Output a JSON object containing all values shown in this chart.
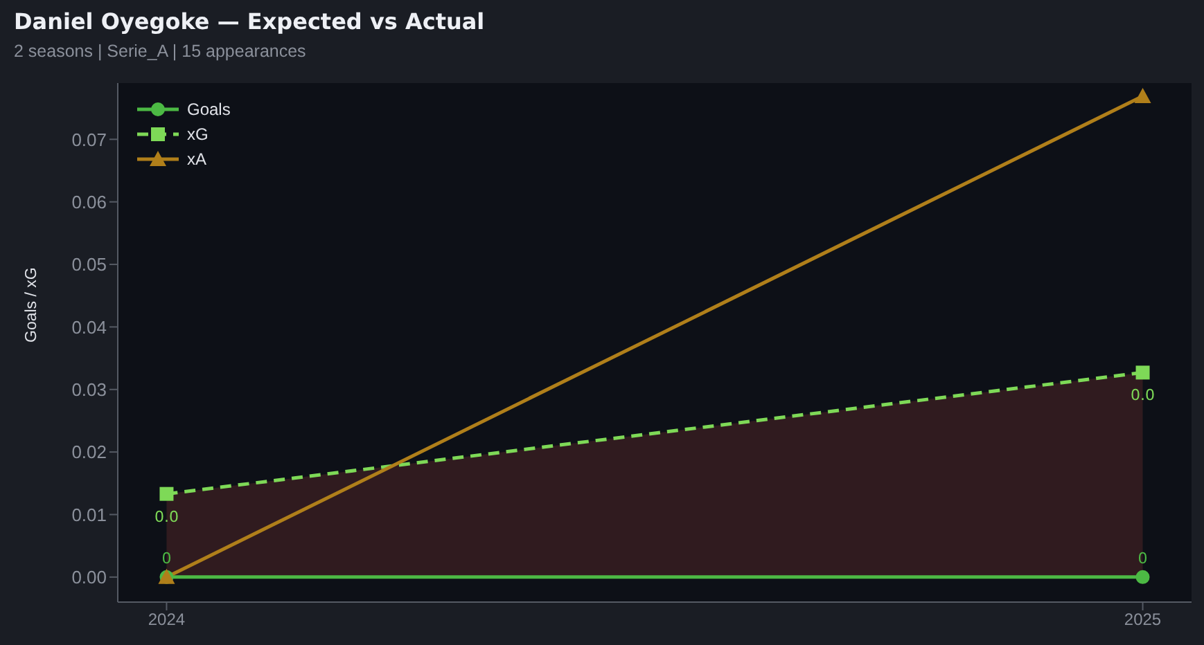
{
  "chart_data": {
    "type": "line",
    "title": "Daniel Oyegoke — Expected vs Actual",
    "subtitle": "2 seasons | Serie_A | 15 appearances",
    "ylabel": "Goals / xG",
    "categories": [
      "2024",
      "2025"
    ],
    "series": [
      {
        "name": "Goals",
        "color": "#4cb944",
        "values": [
          0,
          0
        ],
        "marker": "circle",
        "line_style": "solid",
        "value_labels": [
          "0",
          "0"
        ]
      },
      {
        "name": "xG",
        "color": "#7ed957",
        "values": [
          0.0133,
          0.0327
        ],
        "marker": "square",
        "line_style": "dashed",
        "value_labels": [
          "0.0",
          "0.0"
        ],
        "lower": [
          0,
          0
        ],
        "upper": [
          0.0133,
          0.0327
        ]
      },
      {
        "name": "xA",
        "color": "#b07f1a",
        "values": [
          0,
          0.0769
        ],
        "marker": "triangle",
        "line_style": "solid"
      }
    ],
    "ylim": [
      -0.004,
      0.079
    ],
    "yticks": [
      {
        "value": 0,
        "label": "0.00"
      },
      {
        "value": 0.01,
        "label": "0.01"
      },
      {
        "value": 0.02,
        "label": "0.02"
      },
      {
        "value": 0.03,
        "label": "0.03"
      },
      {
        "value": 0.04,
        "label": "0.04"
      },
      {
        "value": 0.05,
        "label": "0.05"
      },
      {
        "value": 0.06,
        "label": "0.06"
      },
      {
        "value": 0.07,
        "label": "0.07"
      }
    ],
    "grid": false,
    "legend": "top left"
  }
}
